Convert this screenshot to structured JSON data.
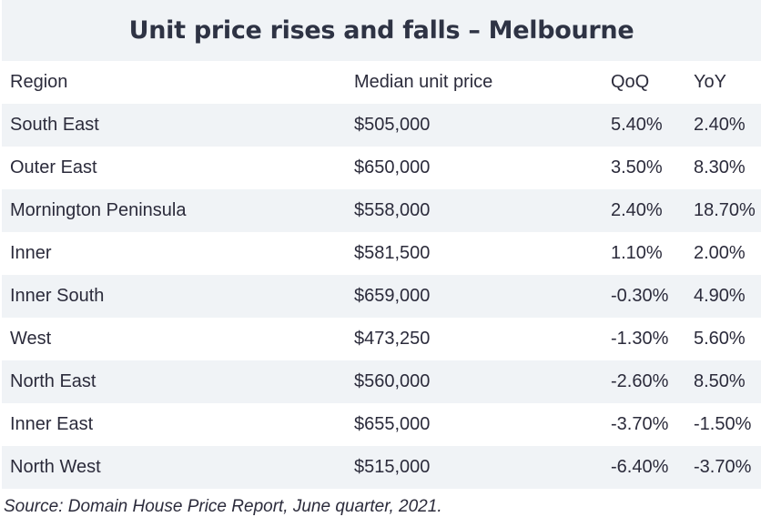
{
  "title": "Unit price rises and falls – Melbourne",
  "headers": {
    "region": "Region",
    "price": "Median unit price",
    "qoq": "QoQ",
    "yoy": "YoY"
  },
  "rows": [
    {
      "region": "South East",
      "price": "$505,000",
      "qoq": "5.40%",
      "yoy": "2.40%"
    },
    {
      "region": "Outer East",
      "price": "$650,000",
      "qoq": "3.50%",
      "yoy": "8.30%"
    },
    {
      "region": "Mornington Peninsula",
      "price": "$558,000",
      "qoq": "2.40%",
      "yoy": "18.70%"
    },
    {
      "region": "Inner",
      "price": "$581,500",
      "qoq": "1.10%",
      "yoy": "2.00%"
    },
    {
      "region": "Inner South",
      "price": "$659,000",
      "qoq": "-0.30%",
      "yoy": "4.90%"
    },
    {
      "region": "West",
      "price": "$473,250",
      "qoq": "-1.30%",
      "yoy": "5.60%"
    },
    {
      "region": "North East",
      "price": "$560,000",
      "qoq": "-2.60%",
      "yoy": "8.50%"
    },
    {
      "region": "Inner East",
      "price": "$655,000",
      "qoq": "-3.70%",
      "yoy": "-1.50%"
    },
    {
      "region": "North West",
      "price": "$515,000",
      "qoq": "-6.40%",
      "yoy": "-3.70%"
    }
  ],
  "source": "Source: Domain House Price Report, June quarter, 2021."
}
